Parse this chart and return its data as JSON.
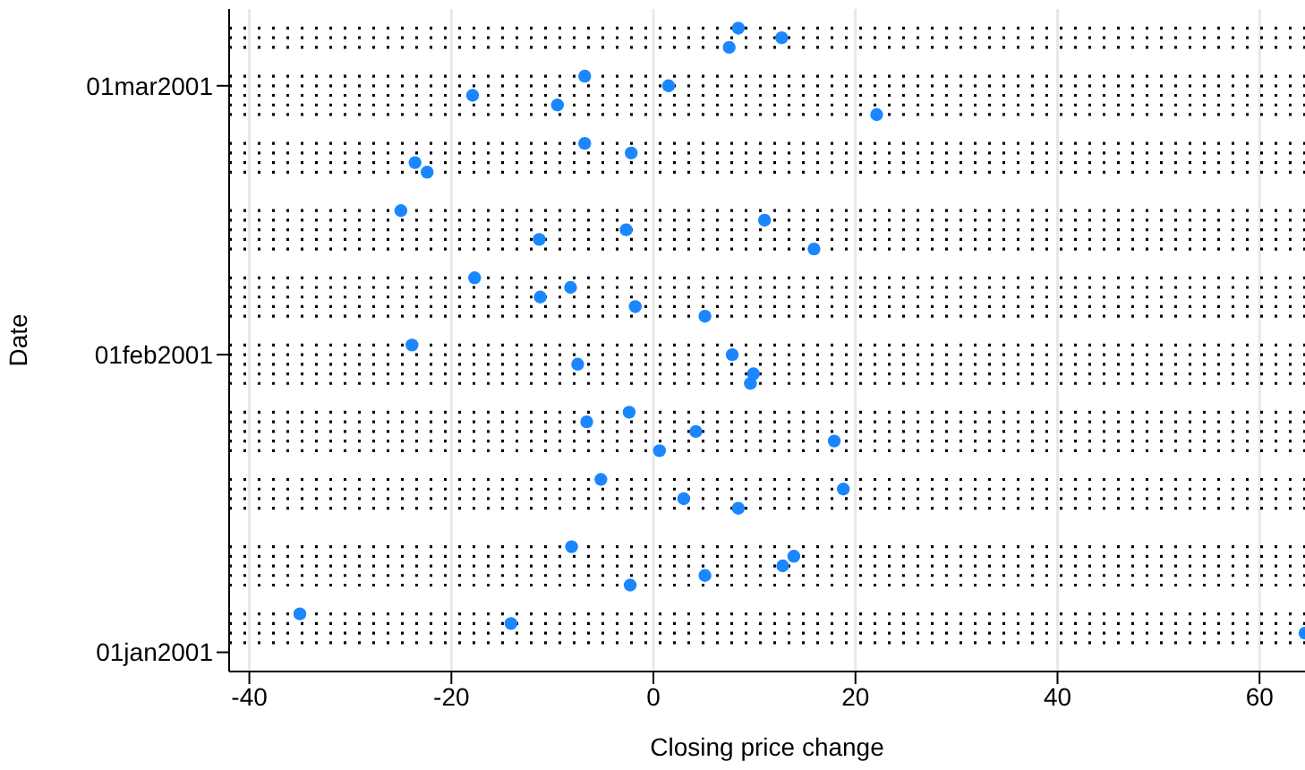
{
  "chart_data": {
    "type": "scatter",
    "xlabel": "Closing price change",
    "ylabel": "Date",
    "orientation": "horizontal",
    "x": [
      "2001-01-03",
      "2001-01-04",
      "2001-01-05",
      "2001-01-08",
      "2001-01-09",
      "2001-01-10",
      "2001-01-11",
      "2001-01-12",
      "2001-01-16",
      "2001-01-17",
      "2001-01-18",
      "2001-01-19",
      "2001-01-22",
      "2001-01-23",
      "2001-01-24",
      "2001-01-25",
      "2001-01-26",
      "2001-01-29",
      "2001-01-30",
      "2001-01-31",
      "2001-02-01",
      "2001-02-02",
      "2001-02-05",
      "2001-02-06",
      "2001-02-07",
      "2001-02-08",
      "2001-02-09",
      "2001-02-12",
      "2001-02-13",
      "2001-02-14",
      "2001-02-15",
      "2001-02-16",
      "2001-02-20",
      "2001-02-21",
      "2001-02-22",
      "2001-02-23",
      "2001-02-26",
      "2001-02-27",
      "2001-02-28",
      "2001-03-01",
      "2001-03-02",
      "2001-03-05",
      "2001-03-06",
      "2001-03-07"
    ],
    "series": [
      {
        "color": "#1a86ff",
        "values": [
          64.5,
          -14.1,
          -35.0,
          -2.3,
          5.1,
          12.8,
          13.9,
          -8.1,
          8.4,
          3.0,
          18.8,
          -5.2,
          0.6,
          17.9,
          4.2,
          -6.6,
          -2.4,
          9.6,
          9.9,
          -7.5,
          7.8,
          -23.9,
          5.1,
          -1.8,
          -11.2,
          -8.2,
          -17.7,
          15.9,
          -11.3,
          -2.7,
          11.0,
          -25.0,
          -22.4,
          -23.6,
          -2.2,
          -6.8,
          22.1,
          -9.5,
          -17.9,
          1.5,
          -6.8,
          7.5,
          12.7,
          8.4
        ]
      }
    ],
    "xlim": [
      -42,
      64.5
    ],
    "xticks": [
      -40,
      -20,
      0,
      20,
      40,
      60
    ],
    "ylim": [
      "2000-12-30",
      "2001-03-09"
    ],
    "yticks": [
      {
        "value": "2001-01-01",
        "label": "01jan2001"
      },
      {
        "value": "2001-02-01",
        "label": "01feb2001"
      },
      {
        "value": "2001-03-01",
        "label": "01mar2001"
      }
    ],
    "grid": "x",
    "marker": "circle",
    "legend": false,
    "ref_lines": [
      {
        "axis": "y",
        "value": "2001-01-02",
        "line_style": "dotted",
        "color": "#000000"
      },
      {
        "axis": "y",
        "value": "2001-01-03",
        "line_style": "dotted",
        "color": "#000000"
      },
      {
        "axis": "y",
        "value": "2001-01-04",
        "line_style": "dotted",
        "color": "#000000"
      },
      {
        "axis": "y",
        "value": "2001-01-05",
        "line_style": "dotted",
        "color": "#000000"
      },
      {
        "axis": "y",
        "value": "2001-01-08",
        "line_style": "dotted",
        "color": "#000000"
      },
      {
        "axis": "y",
        "value": "2001-01-09",
        "line_style": "dotted",
        "color": "#000000"
      },
      {
        "axis": "y",
        "value": "2001-01-10",
        "line_style": "dotted",
        "color": "#000000"
      },
      {
        "axis": "y",
        "value": "2001-01-11",
        "line_style": "dotted",
        "color": "#000000"
      },
      {
        "axis": "y",
        "value": "2001-01-12",
        "line_style": "dotted",
        "color": "#000000"
      },
      {
        "axis": "y",
        "value": "2001-01-16",
        "line_style": "dotted",
        "color": "#000000"
      },
      {
        "axis": "y",
        "value": "2001-01-17",
        "line_style": "dotted",
        "color": "#000000"
      },
      {
        "axis": "y",
        "value": "2001-01-18",
        "line_style": "dotted",
        "color": "#000000"
      },
      {
        "axis": "y",
        "value": "2001-01-19",
        "line_style": "dotted",
        "color": "#000000"
      },
      {
        "axis": "y",
        "value": "2001-01-22",
        "line_style": "dotted",
        "color": "#000000"
      },
      {
        "axis": "y",
        "value": "2001-01-23",
        "line_style": "dotted",
        "color": "#000000"
      },
      {
        "axis": "y",
        "value": "2001-01-24",
        "line_style": "dotted",
        "color": "#000000"
      },
      {
        "axis": "y",
        "value": "2001-01-25",
        "line_style": "dotted",
        "color": "#000000"
      },
      {
        "axis": "y",
        "value": "2001-01-26",
        "line_style": "dotted",
        "color": "#000000"
      },
      {
        "axis": "y",
        "value": "2001-01-29",
        "line_style": "dotted",
        "color": "#000000"
      },
      {
        "axis": "y",
        "value": "2001-01-30",
        "line_style": "dotted",
        "color": "#000000"
      },
      {
        "axis": "y",
        "value": "2001-01-31",
        "line_style": "dotted",
        "color": "#000000"
      },
      {
        "axis": "y",
        "value": "2001-02-01",
        "line_style": "dotted",
        "color": "#000000"
      },
      {
        "axis": "y",
        "value": "2001-02-02",
        "line_style": "dotted",
        "color": "#000000"
      },
      {
        "axis": "y",
        "value": "2001-02-05",
        "line_style": "dotted",
        "color": "#000000"
      },
      {
        "axis": "y",
        "value": "2001-02-06",
        "line_style": "dotted",
        "color": "#000000"
      },
      {
        "axis": "y",
        "value": "2001-02-07",
        "line_style": "dotted",
        "color": "#000000"
      },
      {
        "axis": "y",
        "value": "2001-02-08",
        "line_style": "dotted",
        "color": "#000000"
      },
      {
        "axis": "y",
        "value": "2001-02-09",
        "line_style": "dotted",
        "color": "#000000"
      },
      {
        "axis": "y",
        "value": "2001-02-12",
        "line_style": "dotted",
        "color": "#000000"
      },
      {
        "axis": "y",
        "value": "2001-02-13",
        "line_style": "dotted",
        "color": "#000000"
      },
      {
        "axis": "y",
        "value": "2001-02-14",
        "line_style": "dotted",
        "color": "#000000"
      },
      {
        "axis": "y",
        "value": "2001-02-15",
        "line_style": "dotted",
        "color": "#000000"
      },
      {
        "axis": "y",
        "value": "2001-02-16",
        "line_style": "dotted",
        "color": "#000000"
      },
      {
        "axis": "y",
        "value": "2001-02-20",
        "line_style": "dotted",
        "color": "#000000"
      },
      {
        "axis": "y",
        "value": "2001-02-21",
        "line_style": "dotted",
        "color": "#000000"
      },
      {
        "axis": "y",
        "value": "2001-02-22",
        "line_style": "dotted",
        "color": "#000000"
      },
      {
        "axis": "y",
        "value": "2001-02-23",
        "line_style": "dotted",
        "color": "#000000"
      },
      {
        "axis": "y",
        "value": "2001-02-26",
        "line_style": "dotted",
        "color": "#000000"
      },
      {
        "axis": "y",
        "value": "2001-02-27",
        "line_style": "dotted",
        "color": "#000000"
      },
      {
        "axis": "y",
        "value": "2001-02-28",
        "line_style": "dotted",
        "color": "#000000"
      },
      {
        "axis": "y",
        "value": "2001-03-01",
        "line_style": "dotted",
        "color": "#000000"
      },
      {
        "axis": "y",
        "value": "2001-03-02",
        "line_style": "dotted",
        "color": "#000000"
      },
      {
        "axis": "y",
        "value": "2001-03-05",
        "line_style": "dotted",
        "color": "#000000"
      },
      {
        "axis": "y",
        "value": "2001-03-06",
        "line_style": "dotted",
        "color": "#000000"
      },
      {
        "axis": "y",
        "value": "2001-03-07",
        "line_style": "dotted",
        "color": "#000000"
      }
    ]
  }
}
